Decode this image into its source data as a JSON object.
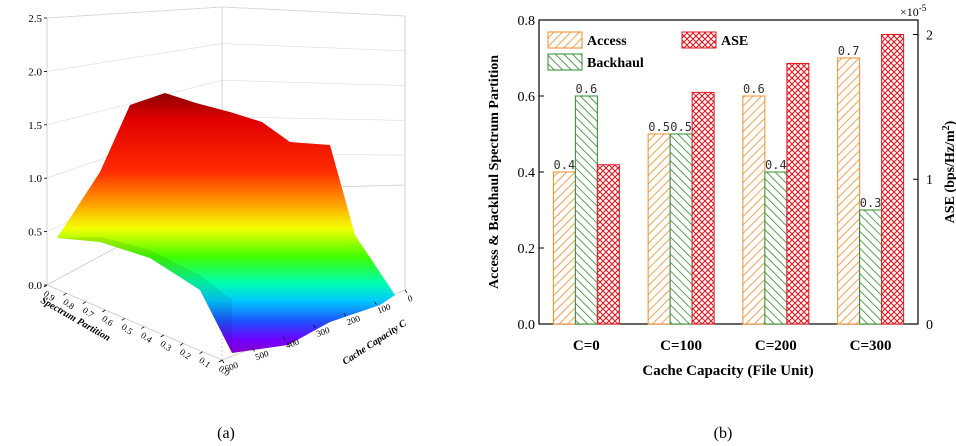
{
  "chart_data": [
    {
      "type": "surface",
      "panel_label": "(a)",
      "z_axis": {
        "label": "",
        "ticks": [
          "0.0",
          "0.5",
          "1.0",
          "1.5",
          "2.0",
          "2.5"
        ],
        "range": [
          0,
          2.5
        ]
      },
      "x_axis": {
        "label": "Spectrum Partition",
        "ticks": [
          "0.9",
          "0.8",
          "0.7",
          "0.6",
          "0.5",
          "0.4",
          "0.3",
          "0.2",
          "0.1",
          "0.0"
        ]
      },
      "y_axis": {
        "label": "Cache Capacity C",
        "ticks": [
          "0",
          "100",
          "200",
          "300",
          "400",
          "500",
          "600"
        ]
      },
      "colormap": "rainbow"
    },
    {
      "type": "bar",
      "panel_label": "(b)",
      "categories": [
        "C=0",
        "C=100",
        "C=200",
        "C=300"
      ],
      "series": [
        {
          "name": "Access",
          "axis": "left",
          "color": "#f28c28",
          "hatch": "////",
          "values": [
            0.4,
            0.5,
            0.6,
            0.7
          ],
          "labels": [
            "0.4",
            "0.5",
            "0.6",
            "0.7"
          ]
        },
        {
          "name": "Backhaul",
          "axis": "left",
          "color": "#2e8b2e",
          "hatch": "\\\\\\\\",
          "values": [
            0.6,
            0.5,
            0.4,
            0.3
          ],
          "labels": [
            "0.6",
            "0.5",
            "0.4",
            "0.3"
          ]
        },
        {
          "name": "ASE",
          "axis": "right",
          "color": "#e8141c",
          "hatch": "xxxx",
          "values": [
            1.1e-05,
            1.6e-05,
            1.8e-05,
            2e-05
          ],
          "labels": [
            "",
            "",
            "",
            ""
          ]
        }
      ],
      "xlabel": "Cache Capacity (File Unit)",
      "ylabel": "Access & Backhaul Spectrum Partition",
      "y2label": "ASE (bps/Hz/m",
      "y2label_sup": "2",
      "y2label_end": ")",
      "y2_multiplier": "×10",
      "y2_multiplier_exp": "-5",
      "ylim": [
        0,
        0.8
      ],
      "yticks": [
        "0.0",
        "0.2",
        "0.4",
        "0.6",
        "0.8"
      ],
      "y2lim": [
        0,
        2.1e-05
      ],
      "y2ticks": [
        "0",
        "1",
        "2"
      ],
      "legend_placement": "top-left"
    }
  ]
}
